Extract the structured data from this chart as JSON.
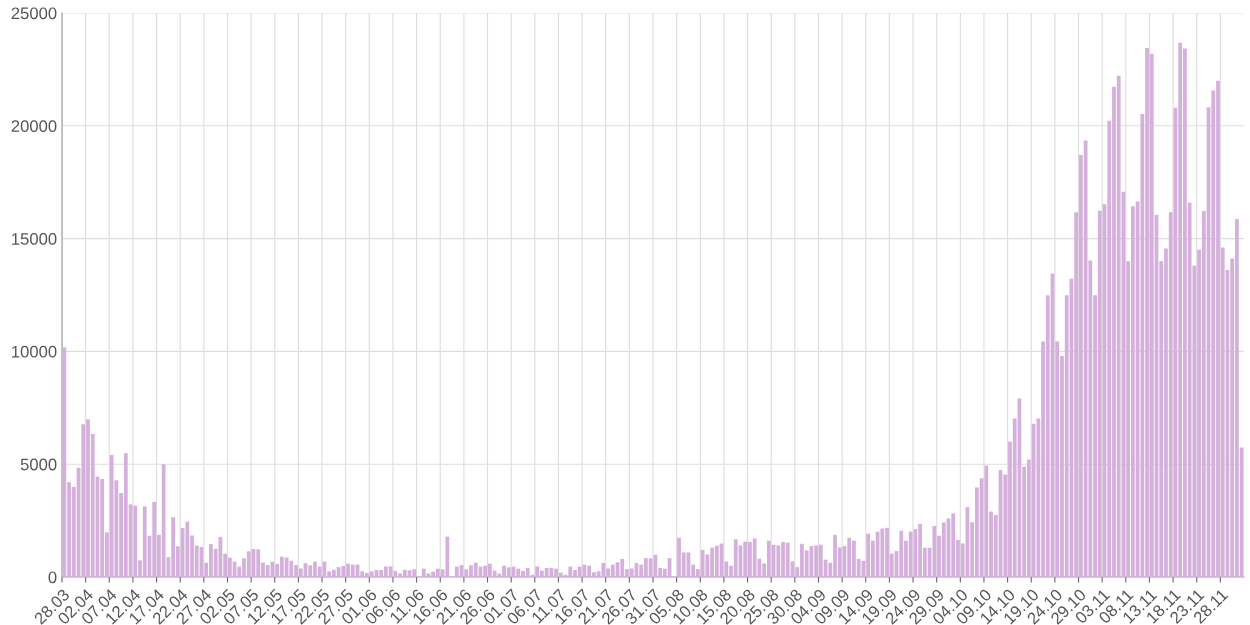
{
  "chart_data": {
    "type": "bar",
    "categories": [
      "28.03",
      null,
      null,
      null,
      null,
      "02.04",
      null,
      null,
      null,
      null,
      "07.04",
      null,
      null,
      null,
      null,
      "12.04",
      null,
      null,
      null,
      null,
      "17.04",
      null,
      null,
      null,
      null,
      "22.04",
      null,
      null,
      null,
      null,
      "27.04",
      null,
      null,
      null,
      null,
      "02.05",
      null,
      null,
      null,
      null,
      "07.05",
      null,
      null,
      null,
      null,
      "12.05",
      null,
      null,
      null,
      null,
      "17.05",
      null,
      null,
      null,
      null,
      "22.05",
      null,
      null,
      null,
      null,
      "27.05",
      null,
      null,
      null,
      null,
      "01.06",
      null,
      null,
      null,
      null,
      "06.06",
      null,
      null,
      null,
      null,
      "11.06",
      null,
      null,
      null,
      null,
      "16.06",
      null,
      null,
      null,
      null,
      "21.06",
      null,
      null,
      null,
      null,
      "26.06",
      null,
      null,
      null,
      null,
      "01.07",
      null,
      null,
      null,
      null,
      "06.07",
      null,
      null,
      null,
      null,
      "11.07",
      null,
      null,
      null,
      null,
      "16.07",
      null,
      null,
      null,
      null,
      "21.07",
      null,
      null,
      null,
      null,
      "26.07",
      null,
      null,
      null,
      null,
      "31.07",
      null,
      null,
      null,
      null,
      "05.08",
      null,
      null,
      null,
      null,
      "10.08",
      null,
      null,
      null,
      null,
      "15.08",
      null,
      null,
      null,
      null,
      "20.08",
      null,
      null,
      null,
      null,
      "25.08",
      null,
      null,
      null,
      null,
      "30.08",
      null,
      null,
      null,
      null,
      "04.09",
      null,
      null,
      null,
      null,
      "09.09",
      null,
      null,
      null,
      null,
      "14.09",
      null,
      null,
      null,
      null,
      "19.09",
      null,
      null,
      null,
      null,
      "24.09",
      null,
      null,
      null,
      null,
      "29.09",
      null,
      null,
      null,
      null,
      "04.10",
      null,
      null,
      null,
      null,
      "09.10",
      null,
      null,
      null,
      null,
      "14.10",
      null,
      null,
      null,
      null,
      "19.10",
      null,
      null,
      null,
      null,
      "24.10",
      null,
      null,
      null,
      null,
      "29.10",
      null,
      null,
      null,
      null,
      "03.11",
      null,
      null,
      null,
      null,
      "08.11",
      null,
      null,
      null,
      null,
      "13.11",
      null,
      null,
      null,
      null,
      "18.11",
      null,
      null,
      null,
      null,
      "23.11",
      null,
      null,
      null,
      null,
      "28.11",
      null,
      null,
      null,
      null
    ],
    "values": [
      10180,
      4200,
      4000,
      4840,
      6770,
      6990,
      6340,
      4450,
      4350,
      1980,
      5410,
      4290,
      3720,
      5490,
      3220,
      3160,
      740,
      3130,
      1830,
      3330,
      1870,
      5000,
      880,
      2650,
      1360,
      2170,
      2450,
      1840,
      1390,
      1330,
      630,
      1460,
      1250,
      1780,
      1030,
      860,
      680,
      460,
      830,
      1140,
      1240,
      1230,
      640,
      530,
      680,
      580,
      900,
      860,
      720,
      530,
      380,
      610,
      520,
      680,
      460,
      680,
      250,
      320,
      440,
      490,
      590,
      550,
      550,
      250,
      180,
      250,
      310,
      310,
      470,
      470,
      270,
      160,
      320,
      300,
      340,
      null,
      370,
      160,
      240,
      370,
      340,
      1790,
      null,
      460,
      530,
      340,
      520,
      640,
      460,
      500,
      590,
      280,
      150,
      500,
      430,
      460,
      370,
      270,
      400,
      100,
      470,
      280,
      400,
      410,
      370,
      190,
      100,
      460,
      310,
      460,
      550,
      500,
      210,
      250,
      620,
      380,
      550,
      650,
      800,
      350,
      380,
      620,
      550,
      840,
      830,
      990,
      400,
      370,
      840,
      null,
      1740,
      1090,
      1090,
      550,
      350,
      1200,
      1000,
      1300,
      1390,
      1480,
      690,
      500,
      1670,
      1400,
      1570,
      1560,
      1710,
      810,
      600,
      1610,
      1430,
      1400,
      1550,
      1520,
      690,
      440,
      1470,
      1180,
      1370,
      1400,
      1430,
      770,
      630,
      1870,
      1310,
      1370,
      1740,
      1610,
      800,
      720,
      1920,
      1610,
      2010,
      2150,
      2180,
      1030,
      1150,
      2050,
      1610,
      2010,
      2120,
      2350,
      1300,
      1300,
      2260,
      1830,
      2420,
      2600,
      2820,
      1640,
      1490,
      3100,
      2430,
      3970,
      4380,
      4940,
      2900,
      2750,
      4740,
      4540,
      6000,
      7030,
      7910,
      4890,
      5210,
      6790,
      7030,
      10440,
      12490,
      13450,
      10440,
      9800,
      12490,
      13220,
      16170,
      18710,
      19350,
      14030,
      12490,
      16240,
      16520,
      20220,
      21730,
      22220,
      17080,
      14000,
      16430,
      16650,
      20520,
      23450,
      23190,
      16050,
      14010,
      14560,
      16170,
      20800,
      23680,
      23430,
      16590,
      13800,
      14510,
      16220,
      20820,
      21560,
      22000,
      14610,
      13610,
      14120,
      15870,
      5740
    ],
    "color": "#d5b0dc",
    "ylim": [
      0,
      25000
    ],
    "yticks": [
      0,
      5000,
      10000,
      15000,
      20000,
      25000
    ],
    "grid": true,
    "legend": false
  }
}
